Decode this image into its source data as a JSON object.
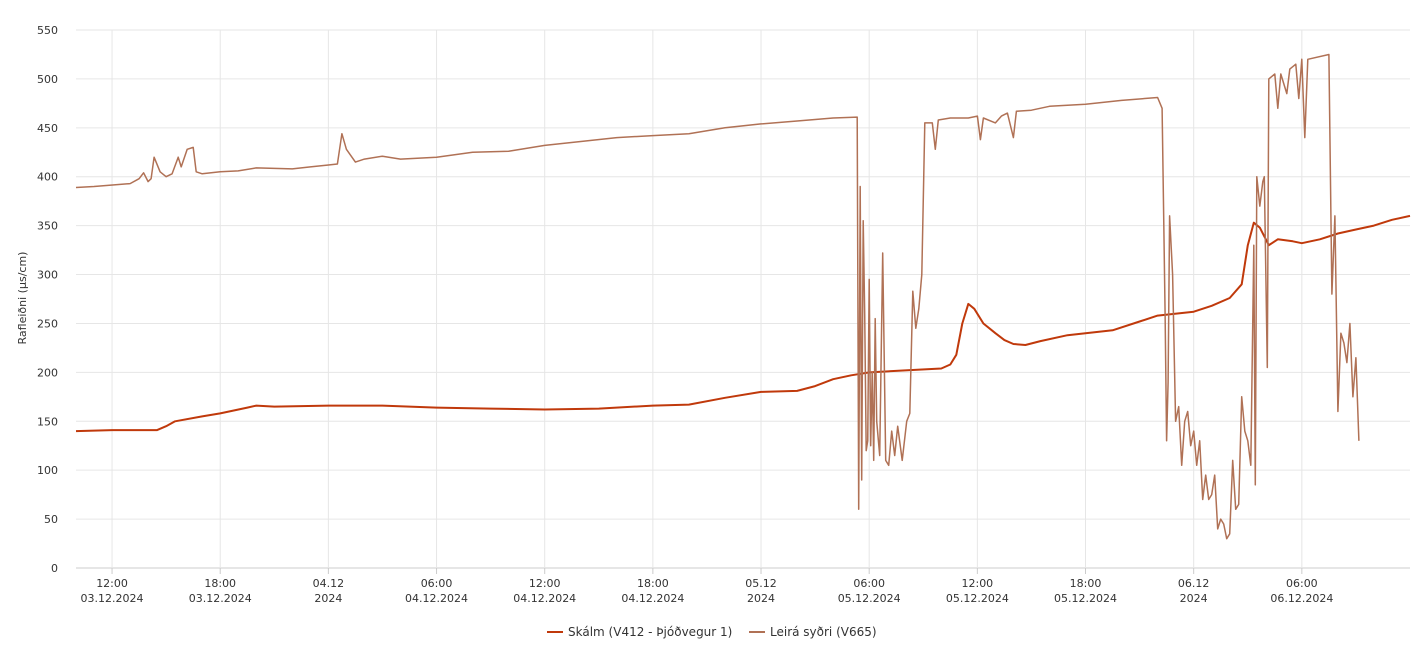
{
  "chart_data": {
    "type": "line",
    "title": "",
    "xlabel": "",
    "ylabel": "Rafleiðni (µs/cm)",
    "ylim": [
      0,
      550
    ],
    "xlim": [
      "2024-12-03T10:00",
      "2024-12-06T12:00"
    ],
    "grid": true,
    "legend_position": "bottom-center",
    "y_ticks": [
      "0",
      "50",
      "100",
      "150",
      "200",
      "250",
      "300",
      "350",
      "400",
      "450",
      "500",
      "550"
    ],
    "x_ticks": [
      {
        "at": "2024-12-03T12:00",
        "line1": "12:00",
        "line2": "03.12.2024"
      },
      {
        "at": "2024-12-03T18:00",
        "line1": "18:00",
        "line2": "03.12.2024"
      },
      {
        "at": "2024-12-04T00:00",
        "line1": "04.12",
        "line2": "2024"
      },
      {
        "at": "2024-12-04T06:00",
        "line1": "06:00",
        "line2": "04.12.2024"
      },
      {
        "at": "2024-12-04T12:00",
        "line1": "12:00",
        "line2": "04.12.2024"
      },
      {
        "at": "2024-12-04T18:00",
        "line1": "18:00",
        "line2": "04.12.2024"
      },
      {
        "at": "2024-12-05T00:00",
        "line1": "05.12",
        "line2": "2024"
      },
      {
        "at": "2024-12-05T06:00",
        "line1": "06:00",
        "line2": "05.12.2024"
      },
      {
        "at": "2024-12-05T12:00",
        "line1": "12:00",
        "line2": "05.12.2024"
      },
      {
        "at": "2024-12-05T18:00",
        "line1": "18:00",
        "line2": "05.12.2024"
      },
      {
        "at": "2024-12-06T00:00",
        "line1": "06.12",
        "line2": "2024"
      },
      {
        "at": "2024-12-06T06:00",
        "line1": "06:00",
        "line2": "06.12.2024"
      }
    ],
    "series": [
      {
        "name": "Skálm (V412 - Þjóðvegur 1)",
        "color": "#c0390b",
        "points": [
          [
            "2024-12-03T10:00",
            140
          ],
          [
            "2024-12-03T12:00",
            141
          ],
          [
            "2024-12-03T14:30",
            141
          ],
          [
            "2024-12-03T15:00",
            145
          ],
          [
            "2024-12-03T15:30",
            150
          ],
          [
            "2024-12-03T17:00",
            155
          ],
          [
            "2024-12-03T18:00",
            158
          ],
          [
            "2024-12-03T19:30",
            164
          ],
          [
            "2024-12-03T20:00",
            166
          ],
          [
            "2024-12-03T21:00",
            165
          ],
          [
            "2024-12-04T00:00",
            166
          ],
          [
            "2024-12-04T03:00",
            166
          ],
          [
            "2024-12-04T06:00",
            164
          ],
          [
            "2024-12-04T09:00",
            163
          ],
          [
            "2024-12-04T12:00",
            162
          ],
          [
            "2024-12-04T15:00",
            163
          ],
          [
            "2024-12-04T18:00",
            166
          ],
          [
            "2024-12-04T20:00",
            167
          ],
          [
            "2024-12-04T22:00",
            174
          ],
          [
            "2024-12-05T00:00",
            180
          ],
          [
            "2024-12-05T02:00",
            181
          ],
          [
            "2024-12-05T03:00",
            186
          ],
          [
            "2024-12-05T04:00",
            193
          ],
          [
            "2024-12-05T05:00",
            197
          ],
          [
            "2024-12-05T06:00",
            200
          ],
          [
            "2024-12-05T08:00",
            202
          ],
          [
            "2024-12-05T10:00",
            204
          ],
          [
            "2024-12-05T10:30",
            208
          ],
          [
            "2024-12-05T10:50",
            218
          ],
          [
            "2024-12-05T11:10",
            250
          ],
          [
            "2024-12-05T11:30",
            270
          ],
          [
            "2024-12-05T11:50",
            265
          ],
          [
            "2024-12-05T12:20",
            250
          ],
          [
            "2024-12-05T13:00",
            240
          ],
          [
            "2024-12-05T13:30",
            233
          ],
          [
            "2024-12-05T14:00",
            229
          ],
          [
            "2024-12-05T14:40",
            228
          ],
          [
            "2024-12-05T15:30",
            232
          ],
          [
            "2024-12-05T17:00",
            238
          ],
          [
            "2024-12-05T18:00",
            240
          ],
          [
            "2024-12-05T19:30",
            243
          ],
          [
            "2024-12-05T21:00",
            252
          ],
          [
            "2024-12-05T22:00",
            258
          ],
          [
            "2024-12-06T00:00",
            262
          ],
          [
            "2024-12-06T01:00",
            268
          ],
          [
            "2024-12-06T02:00",
            276
          ],
          [
            "2024-12-06T02:40",
            290
          ],
          [
            "2024-12-06T03:00",
            330
          ],
          [
            "2024-12-06T03:20",
            353
          ],
          [
            "2024-12-06T03:40",
            348
          ],
          [
            "2024-12-06T04:10",
            330
          ],
          [
            "2024-12-06T04:40",
            336
          ],
          [
            "2024-12-06T05:30",
            334
          ],
          [
            "2024-12-06T06:00",
            332
          ],
          [
            "2024-12-06T07:00",
            336
          ],
          [
            "2024-12-06T08:00",
            342
          ],
          [
            "2024-12-06T09:00",
            346
          ],
          [
            "2024-12-06T10:00",
            350
          ],
          [
            "2024-12-06T11:00",
            356
          ],
          [
            "2024-12-06T12:00",
            360
          ]
        ]
      },
      {
        "name": "Leirá syðri (V665)",
        "color": "#b07155",
        "points": [
          [
            "2024-12-03T10:00",
            389
          ],
          [
            "2024-12-03T11:00",
            390
          ],
          [
            "2024-12-03T13:00",
            393
          ],
          [
            "2024-12-03T13:30",
            398
          ],
          [
            "2024-12-03T13:45",
            404
          ],
          [
            "2024-12-03T14:00",
            395
          ],
          [
            "2024-12-03T14:10",
            398
          ],
          [
            "2024-12-03T14:20",
            420
          ],
          [
            "2024-12-03T14:40",
            405
          ],
          [
            "2024-12-03T15:00",
            400
          ],
          [
            "2024-12-03T15:20",
            403
          ],
          [
            "2024-12-03T15:40",
            420
          ],
          [
            "2024-12-03T15:50",
            410
          ],
          [
            "2024-12-03T16:10",
            428
          ],
          [
            "2024-12-03T16:30",
            430
          ],
          [
            "2024-12-03T16:40",
            405
          ],
          [
            "2024-12-03T17:00",
            403
          ],
          [
            "2024-12-03T18:00",
            405
          ],
          [
            "2024-12-03T19:00",
            406
          ],
          [
            "2024-12-03T20:00",
            409
          ],
          [
            "2024-12-03T22:00",
            408
          ],
          [
            "2024-12-03T23:00",
            410
          ],
          [
            "2024-12-04T00:00",
            412
          ],
          [
            "2024-12-04T00:30",
            413
          ],
          [
            "2024-12-04T00:45",
            444
          ],
          [
            "2024-12-04T01:00",
            428
          ],
          [
            "2024-12-04T01:30",
            415
          ],
          [
            "2024-12-04T02:00",
            418
          ],
          [
            "2024-12-04T03:00",
            421
          ],
          [
            "2024-12-04T04:00",
            418
          ],
          [
            "2024-12-04T06:00",
            420
          ],
          [
            "2024-12-04T08:00",
            425
          ],
          [
            "2024-12-04T10:00",
            426
          ],
          [
            "2024-12-04T12:00",
            432
          ],
          [
            "2024-12-04T14:00",
            436
          ],
          [
            "2024-12-04T16:00",
            440
          ],
          [
            "2024-12-04T18:00",
            442
          ],
          [
            "2024-12-04T20:00",
            444
          ],
          [
            "2024-12-04T22:00",
            450
          ],
          [
            "2024-12-05T00:00",
            454
          ],
          [
            "2024-12-05T02:00",
            457
          ],
          [
            "2024-12-05T04:00",
            460
          ],
          [
            "2024-12-05T05:20",
            461
          ],
          [
            "2024-12-05T05:25",
            60
          ],
          [
            "2024-12-05T05:30",
            390
          ],
          [
            "2024-12-05T05:35",
            90
          ],
          [
            "2024-12-05T05:40",
            355
          ],
          [
            "2024-12-05T05:45",
            260
          ],
          [
            "2024-12-05T05:50",
            120
          ],
          [
            "2024-12-05T05:55",
            130
          ],
          [
            "2024-12-05T06:00",
            295
          ],
          [
            "2024-12-05T06:05",
            125
          ],
          [
            "2024-12-05T06:10",
            200
          ],
          [
            "2024-12-05T06:15",
            110
          ],
          [
            "2024-12-05T06:20",
            255
          ],
          [
            "2024-12-05T06:25",
            150
          ],
          [
            "2024-12-05T06:35",
            115
          ],
          [
            "2024-12-05T06:45",
            322
          ],
          [
            "2024-12-05T06:55",
            110
          ],
          [
            "2024-12-05T07:05",
            105
          ],
          [
            "2024-12-05T07:15",
            140
          ],
          [
            "2024-12-05T07:25",
            115
          ],
          [
            "2024-12-05T07:35",
            145
          ],
          [
            "2024-12-05T07:50",
            110
          ],
          [
            "2024-12-05T08:05",
            150
          ],
          [
            "2024-12-05T08:15",
            158
          ],
          [
            "2024-12-05T08:25",
            283
          ],
          [
            "2024-12-05T08:35",
            245
          ],
          [
            "2024-12-05T08:45",
            265
          ],
          [
            "2024-12-05T08:55",
            300
          ],
          [
            "2024-12-05T09:05",
            455
          ],
          [
            "2024-12-05T09:30",
            455
          ],
          [
            "2024-12-05T09:40",
            428
          ],
          [
            "2024-12-05T09:50",
            458
          ],
          [
            "2024-12-05T10:30",
            460
          ],
          [
            "2024-12-05T11:30",
            460
          ],
          [
            "2024-12-05T12:00",
            462
          ],
          [
            "2024-12-05T12:10",
            438
          ],
          [
            "2024-12-05T12:20",
            460
          ],
          [
            "2024-12-05T13:00",
            455
          ],
          [
            "2024-12-05T13:20",
            462
          ],
          [
            "2024-12-05T13:40",
            465
          ],
          [
            "2024-12-05T14:00",
            440
          ],
          [
            "2024-12-05T14:10",
            467
          ],
          [
            "2024-12-05T15:00",
            468
          ],
          [
            "2024-12-05T16:00",
            472
          ],
          [
            "2024-12-05T18:00",
            474
          ],
          [
            "2024-12-05T20:00",
            478
          ],
          [
            "2024-12-05T22:00",
            481
          ],
          [
            "2024-12-05T22:15",
            470
          ],
          [
            "2024-12-05T22:25",
            260
          ],
          [
            "2024-12-05T22:30",
            130
          ],
          [
            "2024-12-05T22:35",
            190
          ],
          [
            "2024-12-05T22:40",
            360
          ],
          [
            "2024-12-05T22:50",
            300
          ],
          [
            "2024-12-05T23:00",
            150
          ],
          [
            "2024-12-05T23:10",
            165
          ],
          [
            "2024-12-05T23:20",
            105
          ],
          [
            "2024-12-05T23:30",
            150
          ],
          [
            "2024-12-05T23:40",
            160
          ],
          [
            "2024-12-05T23:50",
            125
          ],
          [
            "2024-12-06T00:00",
            140
          ],
          [
            "2024-12-06T00:10",
            105
          ],
          [
            "2024-12-06T00:20",
            130
          ],
          [
            "2024-12-06T00:30",
            70
          ],
          [
            "2024-12-06T00:40",
            95
          ],
          [
            "2024-12-06T00:50",
            70
          ],
          [
            "2024-12-06T01:00",
            75
          ],
          [
            "2024-12-06T01:10",
            95
          ],
          [
            "2024-12-06T01:20",
            40
          ],
          [
            "2024-12-06T01:30",
            50
          ],
          [
            "2024-12-06T01:40",
            45
          ],
          [
            "2024-12-06T01:50",
            30
          ],
          [
            "2024-12-06T02:00",
            35
          ],
          [
            "2024-12-06T02:10",
            110
          ],
          [
            "2024-12-06T02:20",
            60
          ],
          [
            "2024-12-06T02:30",
            65
          ],
          [
            "2024-12-06T02:40",
            175
          ],
          [
            "2024-12-06T02:50",
            140
          ],
          [
            "2024-12-06T03:00",
            130
          ],
          [
            "2024-12-06T03:10",
            105
          ],
          [
            "2024-12-06T03:20",
            330
          ],
          [
            "2024-12-06T03:25",
            85
          ],
          [
            "2024-12-06T03:30",
            400
          ],
          [
            "2024-12-06T03:40",
            370
          ],
          [
            "2024-12-06T03:50",
            395
          ],
          [
            "2024-12-06T03:55",
            400
          ],
          [
            "2024-12-06T04:05",
            205
          ],
          [
            "2024-12-06T04:10",
            500
          ],
          [
            "2024-12-06T04:30",
            505
          ],
          [
            "2024-12-06T04:40",
            470
          ],
          [
            "2024-12-06T04:50",
            505
          ],
          [
            "2024-12-06T05:10",
            485
          ],
          [
            "2024-12-06T05:20",
            510
          ],
          [
            "2024-12-06T05:40",
            515
          ],
          [
            "2024-12-06T05:50",
            480
          ],
          [
            "2024-12-06T06:00",
            520
          ],
          [
            "2024-12-06T06:10",
            440
          ],
          [
            "2024-12-06T06:20",
            520
          ],
          [
            "2024-12-06T07:30",
            525
          ],
          [
            "2024-12-06T07:40",
            280
          ],
          [
            "2024-12-06T07:50",
            360
          ],
          [
            "2024-12-06T08:00",
            160
          ],
          [
            "2024-12-06T08:10",
            240
          ],
          [
            "2024-12-06T08:20",
            230
          ],
          [
            "2024-12-06T08:30",
            210
          ],
          [
            "2024-12-06T08:40",
            250
          ],
          [
            "2024-12-06T08:50",
            175
          ],
          [
            "2024-12-06T09:00",
            215
          ],
          [
            "2024-12-06T09:10",
            130
          ]
        ]
      }
    ]
  }
}
